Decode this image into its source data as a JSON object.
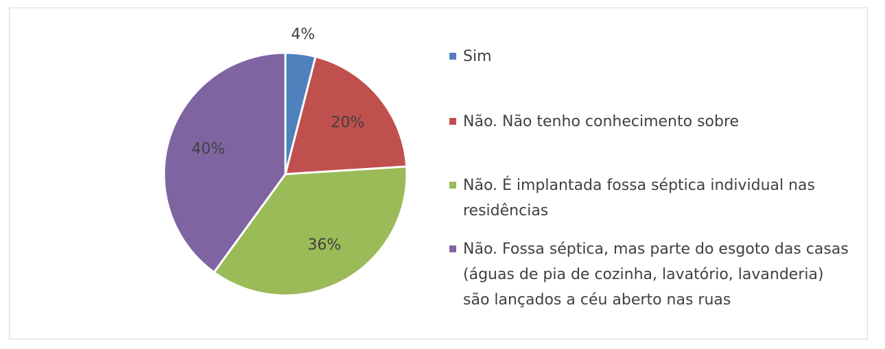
{
  "chart_data": {
    "type": "pie",
    "title": "",
    "legend_position": "right",
    "start_angle_deg": 0,
    "direction": "clockwise",
    "slices": [
      {
        "label": "Sim",
        "value": 4,
        "display": "4%",
        "color": "#4f81bd"
      },
      {
        "label": "Não. Não tenho conhecimento sobre",
        "value": 20,
        "display": "20%",
        "color": "#c0504d"
      },
      {
        "label": "Não. É implantada fossa séptica individual nas residências",
        "value": 36,
        "display": "36%",
        "color": "#9bbb59"
      },
      {
        "label": "Não. Fossa séptica, mas parte do esgoto das casas (águas de pia de cozinha, lavatório, lavanderia) são lançados a céu aberto nas ruas",
        "value": 40,
        "display": "40%",
        "color": "#8064a2"
      }
    ]
  }
}
